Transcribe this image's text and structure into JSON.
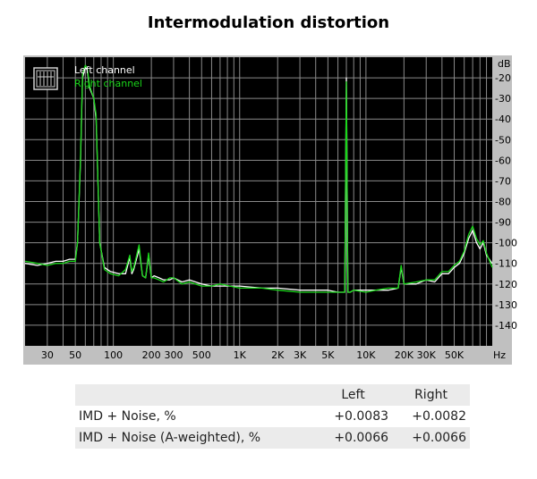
{
  "title": "Intermodulation distortion",
  "chart_data": {
    "type": "line",
    "title": "Intermodulation distortion",
    "xlabel": "Hz",
    "ylabel": "dB",
    "xscale": "log",
    "xlim": [
      20,
      100000
    ],
    "ylim": [
      -150,
      -10
    ],
    "grid": true,
    "legend_position": "top-left",
    "background": "#000000",
    "x_ticks": [
      {
        "value": 30,
        "label": "30"
      },
      {
        "value": 50,
        "label": "50"
      },
      {
        "value": 100,
        "label": "100"
      },
      {
        "value": 200,
        "label": "200"
      },
      {
        "value": 300,
        "label": "300"
      },
      {
        "value": 500,
        "label": "500"
      },
      {
        "value": 1000,
        "label": "1K"
      },
      {
        "value": 2000,
        "label": "2K"
      },
      {
        "value": 3000,
        "label": "3K"
      },
      {
        "value": 5000,
        "label": "5K"
      },
      {
        "value": 10000,
        "label": "10K"
      },
      {
        "value": 20000,
        "label": "20K"
      },
      {
        "value": 30000,
        "label": "30K"
      },
      {
        "value": 50000,
        "label": "50K"
      }
    ],
    "y_ticks": [
      {
        "value": -20,
        "label": "-20"
      },
      {
        "value": -30,
        "label": "-30"
      },
      {
        "value": -40,
        "label": "-40"
      },
      {
        "value": -50,
        "label": "-50"
      },
      {
        "value": -60,
        "label": "-60"
      },
      {
        "value": -70,
        "label": "-70"
      },
      {
        "value": -80,
        "label": "-80"
      },
      {
        "value": -90,
        "label": "-90"
      },
      {
        "value": -100,
        "label": "-100"
      },
      {
        "value": -110,
        "label": "-110"
      },
      {
        "value": -120,
        "label": "-120"
      },
      {
        "value": -130,
        "label": "-130"
      },
      {
        "value": -140,
        "label": "-140"
      }
    ],
    "series": [
      {
        "name": "Left channel",
        "color": "#ffffff",
        "x": [
          20,
          25,
          30,
          35,
          40,
          45,
          50,
          52,
          55,
          57,
          60,
          62,
          65,
          70,
          73,
          78,
          85,
          95,
          110,
          125,
          135,
          140,
          145,
          160,
          170,
          180,
          190,
          200,
          210,
          230,
          250,
          280,
          300,
          350,
          400,
          500,
          600,
          700,
          1000,
          1500,
          2000,
          3000,
          4000,
          5000,
          6000,
          6800,
          7000,
          7200,
          7500,
          8000,
          10000,
          12000,
          15000,
          18000,
          19000,
          20000,
          25000,
          30000,
          35000,
          40000,
          45000,
          50000,
          55000,
          60000,
          65000,
          70000,
          75000,
          80000,
          85000,
          90000,
          100000
        ],
        "y": [
          -110,
          -111,
          -110,
          -109,
          -109,
          -108,
          -108,
          -100,
          -60,
          -20,
          -15,
          -16,
          -25,
          -30,
          -40,
          -100,
          -112,
          -114,
          -115,
          -115,
          -107,
          -115,
          -113,
          -103,
          -116,
          -117,
          -106,
          -117,
          -116,
          -117,
          -118,
          -118,
          -117,
          -119,
          -118,
          -120,
          -121,
          -121,
          -121,
          -122,
          -122,
          -123,
          -123,
          -123,
          -124,
          -124,
          -20,
          -124,
          -124,
          -123,
          -123,
          -123,
          -123,
          -122,
          -112,
          -120,
          -120,
          -118,
          -119,
          -115,
          -115,
          -112,
          -110,
          -105,
          -98,
          -94,
          -100,
          -103,
          -100,
          -106,
          -110
        ]
      },
      {
        "name": "Right channel",
        "color": "#19d619",
        "x": [
          20,
          25,
          30,
          35,
          40,
          45,
          50,
          52,
          55,
          57,
          60,
          62,
          65,
          70,
          73,
          78,
          85,
          95,
          110,
          125,
          135,
          140,
          145,
          160,
          170,
          180,
          190,
          200,
          210,
          230,
          250,
          280,
          300,
          350,
          400,
          500,
          600,
          700,
          1000,
          1500,
          2000,
          3000,
          4000,
          5000,
          6000,
          6800,
          7000,
          7200,
          7500,
          8000,
          10000,
          12000,
          15000,
          18000,
          19000,
          20000,
          25000,
          30000,
          35000,
          40000,
          45000,
          50000,
          55000,
          60000,
          65000,
          70000,
          75000,
          80000,
          85000,
          90000,
          100000
        ],
        "y": [
          -109,
          -110,
          -111,
          -110,
          -110,
          -109,
          -109,
          -100,
          -58,
          -18,
          -14,
          -15,
          -24,
          -30,
          -38,
          -100,
          -113,
          -115,
          -116,
          -113,
          -106,
          -114,
          -112,
          -101,
          -116,
          -117,
          -105,
          -117,
          -117,
          -118,
          -119,
          -117,
          -117,
          -120,
          -119,
          -121,
          -121,
          -120,
          -122,
          -122,
          -123,
          -124,
          -124,
          -124,
          -124,
          -124,
          -22,
          -124,
          -124,
          -123,
          -124,
          -123,
          -122,
          -122,
          -111,
          -120,
          -119,
          -118,
          -118,
          -114,
          -114,
          -111,
          -109,
          -104,
          -96,
          -92,
          -98,
          -101,
          -99,
          -105,
          -112
        ]
      }
    ]
  },
  "results_table": {
    "headers": [
      "",
      "Left",
      "Right"
    ],
    "rows": [
      [
        "IMD + Noise, %",
        "+0.0083",
        "+0.0082"
      ],
      [
        "IMD + Noise (A-weighted), %",
        "+0.0066",
        "+0.0066"
      ]
    ]
  }
}
